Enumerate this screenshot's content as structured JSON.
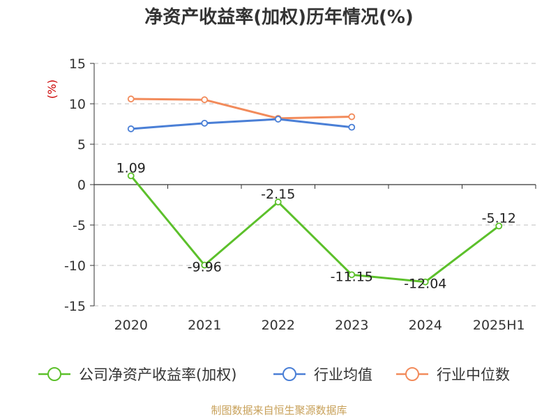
{
  "title": "净资产收益率(加权)历年情况(%)",
  "source_note": "制图数据来自恒生聚源数据库",
  "chart_data": {
    "type": "line",
    "title": "净资产收益率(加权)历年情况(%)",
    "ylabel": "(%)",
    "categories": [
      "2020",
      "2021",
      "2022",
      "2023",
      "2024",
      "2025H1"
    ],
    "ylim": [
      -15,
      15
    ],
    "yticks": [
      15,
      10,
      5,
      0,
      -5,
      -10,
      -15
    ],
    "grid": true,
    "legend_position": "bottom",
    "series": [
      {
        "name": "公司净资产收益率(加权)",
        "color": "#5cc02b",
        "values": [
          1.09,
          -9.96,
          -2.15,
          -11.15,
          -12.04,
          -5.12
        ],
        "labels": [
          "1.09",
          "-9.96",
          "-2.15",
          "-11.15",
          "-12.04",
          "-5.12"
        ]
      },
      {
        "name": "行业均值",
        "color": "#4a7fd6",
        "values": [
          6.9,
          7.6,
          8.1,
          7.1,
          null,
          null
        ]
      },
      {
        "name": "行业中位数",
        "color": "#f28b5b",
        "values": [
          10.6,
          10.5,
          8.2,
          8.4,
          null,
          null
        ]
      }
    ]
  },
  "colors": {
    "axis": "#333333",
    "grid": "#cccccc",
    "unit": "#cc0000"
  }
}
